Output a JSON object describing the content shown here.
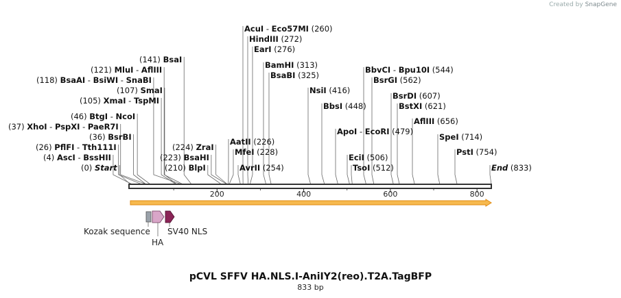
{
  "credit": {
    "prefix": "Created by",
    "brand": "SnapGene"
  },
  "map": {
    "title": "pCVL SFFV HA.NLS.I-AniIY2(reo).T2A.TagBFP",
    "size_text": "833 bp",
    "length_bp": 833,
    "ticks": [
      200,
      400,
      600,
      800
    ]
  },
  "sites": [
    {
      "pos": 0,
      "names": [
        "Start"
      ],
      "label": "(0)",
      "italic": true
    },
    {
      "pos": 4,
      "names": [
        "AscI",
        "BssHII"
      ],
      "label": "(4)"
    },
    {
      "pos": 26,
      "names": [
        "PflFI",
        "Tth111I"
      ],
      "label": "(26)"
    },
    {
      "pos": 36,
      "names": [
        "BsrBI"
      ],
      "label": "(36)"
    },
    {
      "pos": 37,
      "names": [
        "XhoI",
        "PspXI",
        "PaeR7I"
      ],
      "label": "(37)"
    },
    {
      "pos": 46,
      "names": [
        "BtgI",
        "NcoI"
      ],
      "label": "(46)"
    },
    {
      "pos": 105,
      "names": [
        "XmaI",
        "TspMI"
      ],
      "label": "(105)"
    },
    {
      "pos": 107,
      "names": [
        "SmaI"
      ],
      "label": "(107)"
    },
    {
      "pos": 118,
      "names": [
        "BsaAI",
        "BsiWI",
        "SnaBI"
      ],
      "label": "(118)"
    },
    {
      "pos": 121,
      "names": [
        "MluI",
        "AflIII"
      ],
      "label": "(121)"
    },
    {
      "pos": 141,
      "names": [
        "BsaI"
      ],
      "label": "(141)"
    },
    {
      "pos": 210,
      "names": [
        "BlpI"
      ],
      "label": "(210)"
    },
    {
      "pos": 223,
      "names": [
        "BsaHI"
      ],
      "label": "(223)"
    },
    {
      "pos": 224,
      "names": [
        "ZraI"
      ],
      "label": "(224)"
    },
    {
      "pos": 226,
      "names": [
        "AatII"
      ],
      "label": "(226)"
    },
    {
      "pos": 228,
      "names": [
        "MfeI"
      ],
      "label": "(228)"
    },
    {
      "pos": 254,
      "names": [
        "AvrII"
      ],
      "label": "(254)"
    },
    {
      "pos": 260,
      "names": [
        "AcuI",
        "Eco57MI"
      ],
      "label": "(260)"
    },
    {
      "pos": 272,
      "names": [
        "HindIII"
      ],
      "label": "(272)"
    },
    {
      "pos": 276,
      "names": [
        "EarI"
      ],
      "label": "(276)"
    },
    {
      "pos": 313,
      "names": [
        "BamHI"
      ],
      "label": "(313)"
    },
    {
      "pos": 325,
      "names": [
        "BsaBI"
      ],
      "label": "(325)"
    },
    {
      "pos": 416,
      "names": [
        "NsiI"
      ],
      "label": "(416)"
    },
    {
      "pos": 448,
      "names": [
        "BbsI"
      ],
      "label": "(448)"
    },
    {
      "pos": 479,
      "names": [
        "ApoI",
        "EcoRI"
      ],
      "label": "(479)"
    },
    {
      "pos": 506,
      "names": [
        "EciI"
      ],
      "label": "(506)"
    },
    {
      "pos": 512,
      "names": [
        "TsoI"
      ],
      "label": "(512)"
    },
    {
      "pos": 544,
      "names": [
        "BbvCI",
        "Bpu10I"
      ],
      "label": "(544)"
    },
    {
      "pos": 562,
      "names": [
        "BsrGI"
      ],
      "label": "(562)"
    },
    {
      "pos": 607,
      "names": [
        "BsrDI"
      ],
      "label": "(607)"
    },
    {
      "pos": 621,
      "names": [
        "BstXI"
      ],
      "label": "(621)"
    },
    {
      "pos": 656,
      "names": [
        "AflIII"
      ],
      "label": "(656)"
    },
    {
      "pos": 714,
      "names": [
        "SpeI"
      ],
      "label": "(714)"
    },
    {
      "pos": 754,
      "names": [
        "PstI"
      ],
      "label": "(754)"
    },
    {
      "pos": 833,
      "names": [
        "End"
      ],
      "label": "(833)",
      "italic": true
    }
  ],
  "features": [
    {
      "name": "Kozak sequence",
      "color": "#9aa2aa"
    },
    {
      "name": "HA",
      "color": "#d9a6c8"
    },
    {
      "name": "SV40 NLS",
      "color": "#8b2557"
    }
  ],
  "colors": {
    "orf_fill": "#f6b94f",
    "orf_stroke": "#e08a10",
    "backbone": "#333333"
  }
}
